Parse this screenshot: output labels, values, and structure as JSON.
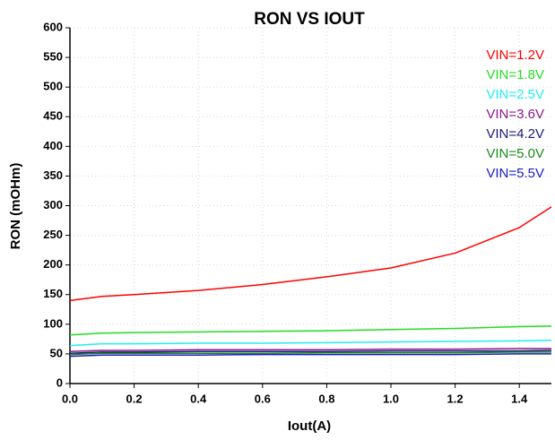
{
  "chart_data": {
    "type": "line",
    "title": "RON VS IOUT",
    "x_label": "Iout(A)",
    "y_label": "RON (mOHm)",
    "x": [
      0,
      0.1,
      0.2,
      0.4,
      0.6,
      0.8,
      1.0,
      1.2,
      1.4,
      1.5
    ],
    "series": [
      {
        "name": "VIN=1.2V",
        "color": "#ff0000",
        "values": [
          140,
          147,
          150,
          157,
          167,
          180,
          195,
          220,
          263,
          298
        ]
      },
      {
        "name": "VIN=1.8V",
        "color": "#22dd22",
        "values": [
          82,
          85,
          86,
          87,
          88,
          89,
          91,
          93,
          96,
          97
        ]
      },
      {
        "name": "VIN=2.5V",
        "color": "#22eeee",
        "values": [
          64,
          67,
          67,
          68,
          68,
          69,
          70,
          71,
          72,
          73
        ]
      },
      {
        "name": "VIN=3.6V",
        "color": "#8b1a8b",
        "values": [
          54,
          56,
          56,
          57,
          57,
          57,
          58,
          58,
          59,
          59
        ]
      },
      {
        "name": "VIN=4.2V",
        "color": "#1a1a7a",
        "values": [
          51,
          53,
          53,
          54,
          54,
          54,
          55,
          55,
          55,
          56
        ]
      },
      {
        "name": "VIN=5.0V",
        "color": "#1a8a1a",
        "values": [
          49,
          51,
          51,
          51,
          51,
          52,
          52,
          52,
          53,
          53
        ]
      },
      {
        "name": "VIN=5.5V",
        "color": "#1a1acc",
        "values": [
          46,
          48,
          48,
          48,
          49,
          49,
          49,
          49,
          50,
          50
        ]
      }
    ],
    "xlim": [
      0,
      1.5
    ],
    "xticks": [
      {
        "value": 0,
        "label": "0.0"
      },
      0.2,
      0.4,
      0.6,
      0.8,
      {
        "value": 1,
        "label": "1.0"
      },
      1.2,
      1.4
    ],
    "ylim": [
      0,
      600
    ],
    "yticks": [
      0,
      50,
      100,
      150,
      200,
      250,
      300,
      350,
      400,
      450,
      500,
      550,
      600
    ],
    "grid": true,
    "legend": "upper right"
  }
}
